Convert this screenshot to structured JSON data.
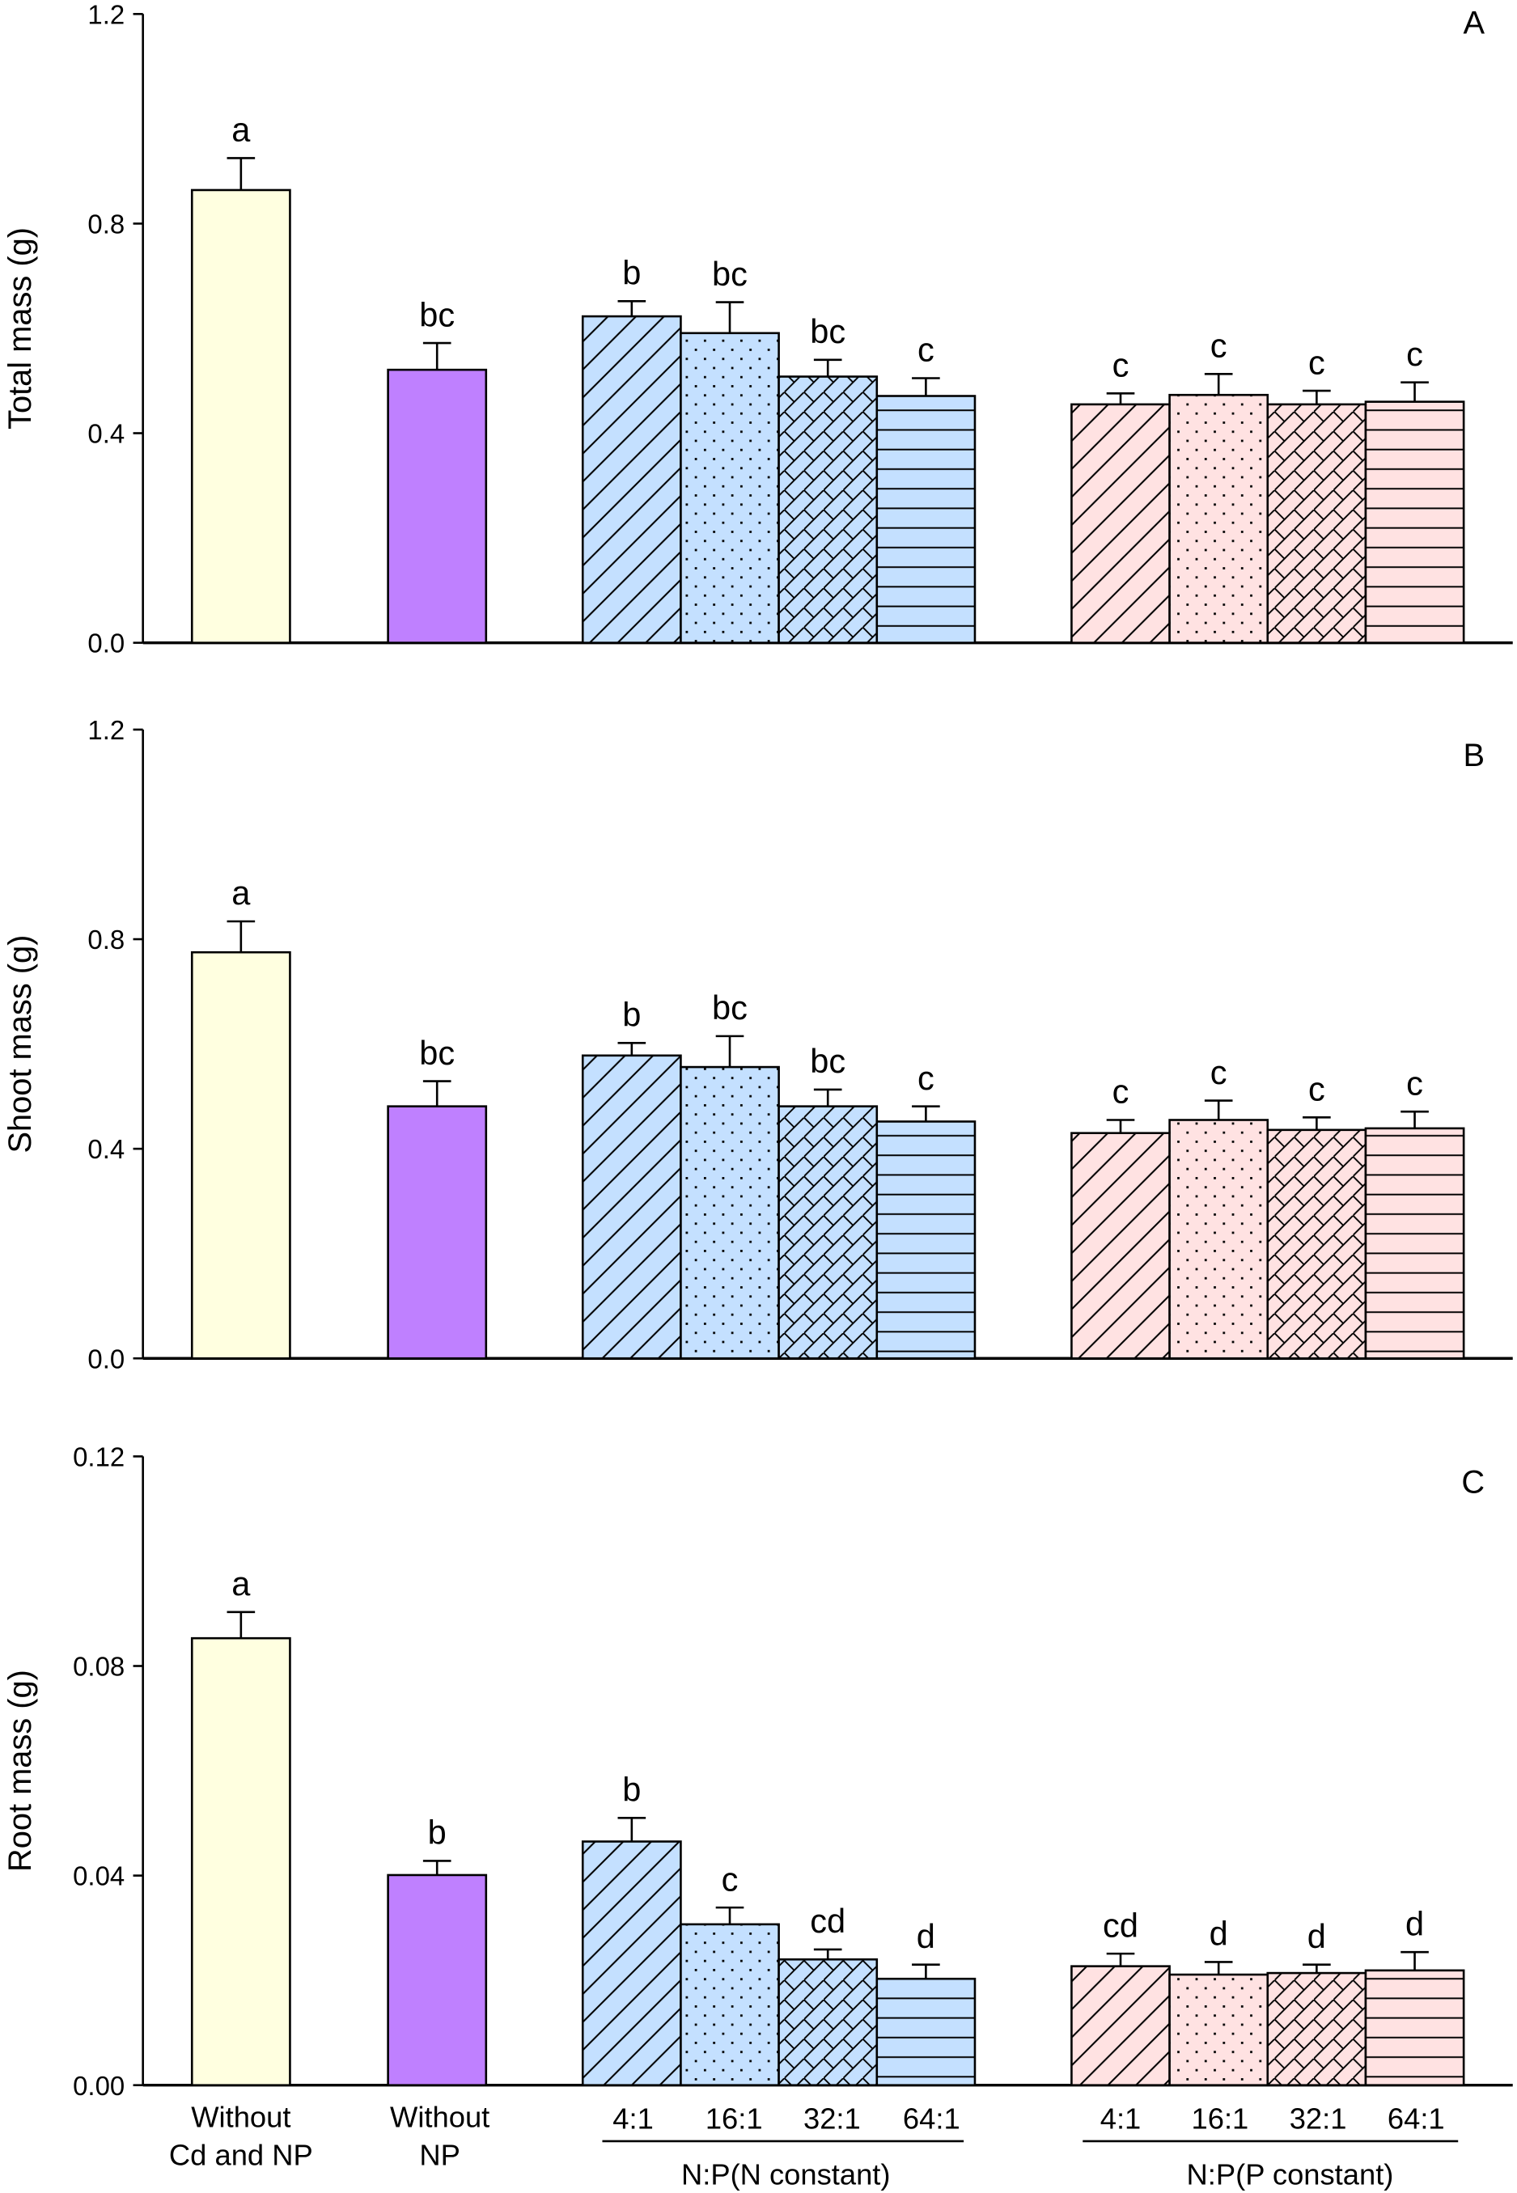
{
  "chart_data": [
    {
      "type": "bar",
      "panel_label": "A",
      "ylabel": "Total mass (g)",
      "ylim": [
        0,
        1.2
      ],
      "yticks": [
        "0.0",
        "0.4",
        "0.8",
        "1.2"
      ],
      "ytick_values": [
        0,
        0.4,
        0.8,
        1.2
      ],
      "values": [
        0.864,
        0.521,
        0.623,
        0.591,
        0.508,
        0.471,
        0.455,
        0.473,
        0.455,
        0.46
      ],
      "errors": [
        0.061,
        0.051,
        0.029,
        0.059,
        0.032,
        0.034,
        0.021,
        0.04,
        0.026,
        0.037
      ],
      "letters": [
        "a",
        "bc",
        "b",
        "bc",
        "bc",
        "c",
        "c",
        "c",
        "c",
        "c"
      ]
    },
    {
      "type": "bar",
      "panel_label": "B",
      "ylabel": "Shoot mass (g)",
      "ylim": [
        0,
        1.2
      ],
      "yticks": [
        "0.0",
        "0.4",
        "0.8",
        "1.2"
      ],
      "ytick_values": [
        0,
        0.4,
        0.8,
        1.2
      ],
      "values": [
        0.775,
        0.481,
        0.578,
        0.556,
        0.481,
        0.452,
        0.43,
        0.455,
        0.436,
        0.439
      ],
      "errors": [
        0.059,
        0.048,
        0.024,
        0.059,
        0.032,
        0.029,
        0.025,
        0.037,
        0.024,
        0.032
      ],
      "letters": [
        "a",
        "bc",
        "b",
        "bc",
        "bc",
        "c",
        "c",
        "c",
        "c",
        "c"
      ]
    },
    {
      "type": "bar",
      "panel_label": "C",
      "ylabel": "Root mass (g)",
      "ylim": [
        0,
        0.12
      ],
      "yticks": [
        "0.00",
        "0.04",
        "0.08",
        "0.12"
      ],
      "ytick_values": [
        0,
        0.04,
        0.08,
        0.12
      ],
      "values": [
        0.0853,
        0.0401,
        0.0465,
        0.0307,
        0.024,
        0.0203,
        0.0227,
        0.0211,
        0.0214,
        0.0219
      ],
      "errors": [
        0.005,
        0.0027,
        0.0045,
        0.0032,
        0.0019,
        0.0027,
        0.0024,
        0.0024,
        0.0016,
        0.0035
      ],
      "letters": [
        "a",
        "b",
        "b",
        "c",
        "cd",
        "d",
        "cd",
        "d",
        "d",
        "d"
      ]
    }
  ],
  "categories": [
    "Without Cd and NP",
    "Without NP",
    "4:1",
    "16:1",
    "32:1",
    "64:1",
    "4:1",
    "16:1",
    "32:1",
    "64:1"
  ],
  "xlabels": {
    "without_cd_np": [
      "Without",
      "Cd and NP"
    ],
    "without_np": [
      "Without",
      "NP"
    ],
    "ratios_n": [
      "4:1",
      "16:1",
      "32:1",
      "64:1"
    ],
    "ratios_p": [
      "4:1",
      "16:1",
      "32:1",
      "64:1"
    ],
    "group_n": "N:P(N constant)",
    "group_p": "N:P(P constant)"
  },
  "colors": {
    "without_cd_np": "#FFFFE0",
    "without_np": "#BF80FF",
    "n_constant": "#C4E0FF",
    "p_constant": "#FFE2E2"
  },
  "bar_patterns": [
    "solid",
    "solid",
    "diagonal",
    "dots",
    "crosshatch",
    "horizontal",
    "diagonal",
    "dots",
    "crosshatch",
    "horizontal"
  ]
}
